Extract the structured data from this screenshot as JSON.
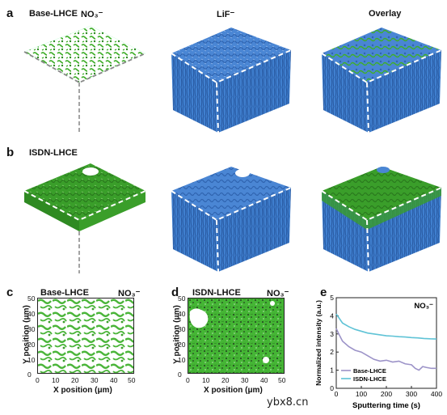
{
  "panels": {
    "a": {
      "letter": "a",
      "sample": "Base-LHCE",
      "ion_no3": "NO₃⁻",
      "ion_lif": "LiF⁻",
      "overlay": "Overlay"
    },
    "b": {
      "letter": "b",
      "sample": "ISDN-LHCE"
    },
    "c": {
      "letter": "c",
      "sample": "Base-LHCE",
      "ion": "NO₃⁻",
      "xlabel": "X position (μm)",
      "ylabel": "Y position (μm)",
      "ticks": [
        "0",
        "10",
        "20",
        "30",
        "40",
        "50"
      ]
    },
    "d": {
      "letter": "d",
      "sample": "ISDN-LHCE",
      "ion": "NO₃⁻",
      "xlabel": "X position (μm)",
      "ylabel": "Y position (μm)",
      "ticks": [
        "0",
        "10",
        "20",
        "30",
        "40",
        "50"
      ]
    },
    "e": {
      "letter": "e",
      "ion": "NO₃⁻"
    }
  },
  "watermark": "ybx8.cn",
  "colors": {
    "no3_green": "#3fae2a",
    "lif_blue": "#3f7fcf",
    "base_line": "#9c93c8",
    "isdn_line": "#5fc3d6"
  },
  "chart_data": {
    "type": "line",
    "title": "NO₃⁻",
    "xlabel": "Sputtering time (s)",
    "ylabel": "Normalized intensity (a.u.)",
    "xlim": [
      0,
      400
    ],
    "ylim": [
      0,
      5
    ],
    "xticks": [
      0,
      100,
      200,
      300,
      400
    ],
    "yticks": [
      0,
      1,
      2,
      3,
      4,
      5
    ],
    "legend": "lower-left",
    "series": [
      {
        "name": "Base-LHCE",
        "color": "#9c93c8",
        "x": [
          0,
          10,
          25,
          50,
          75,
          100,
          125,
          150,
          175,
          200,
          225,
          250,
          275,
          300,
          315,
          330,
          345,
          360,
          380,
          400
        ],
        "y": [
          3.3,
          3.0,
          2.6,
          2.3,
          2.1,
          2.0,
          1.8,
          1.6,
          1.5,
          1.55,
          1.45,
          1.5,
          1.35,
          1.3,
          1.1,
          1.0,
          1.2,
          1.15,
          1.1,
          1.1
        ]
      },
      {
        "name": "ISDN-LHCE",
        "color": "#5fc3d6",
        "x": [
          0,
          10,
          25,
          50,
          75,
          100,
          125,
          150,
          175,
          200,
          225,
          250,
          275,
          300,
          325,
          350,
          375,
          400
        ],
        "y": [
          4.1,
          3.9,
          3.6,
          3.4,
          3.25,
          3.15,
          3.05,
          3.0,
          2.95,
          2.9,
          2.88,
          2.85,
          2.83,
          2.8,
          2.78,
          2.75,
          2.73,
          2.72
        ]
      }
    ]
  }
}
